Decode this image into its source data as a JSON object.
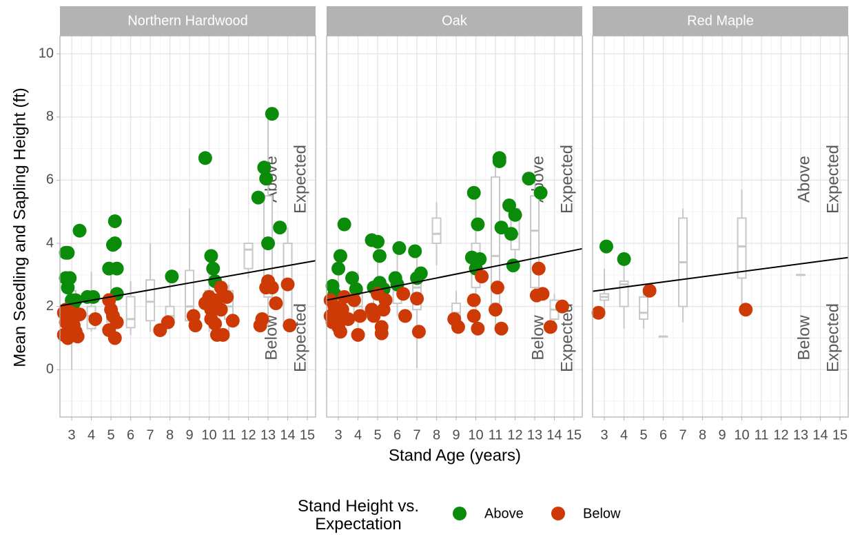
{
  "x_label": "Stand Age (years)",
  "y_label": "Mean Seedling and Sapling Height (ft)",
  "legend_title": "Stand Height vs. Expectation",
  "chart_data": [
    {
      "type": "scatter",
      "title": "Northern Hardwood",
      "xlim": [
        2.4,
        15.42
      ],
      "ylim": [
        -1.5,
        10.57
      ],
      "xticks": [
        3,
        4,
        5,
        6,
        7,
        8,
        9,
        10,
        11,
        12,
        13,
        14,
        15
      ],
      "yticks": [
        0,
        2,
        4,
        6,
        8,
        10
      ],
      "grid": true,
      "series": [
        {
          "name": "Above",
          "color": "#0a8c0a",
          "x": [
            2.7,
            2.8,
            2.7,
            2.9,
            2.8,
            3.0,
            3.1,
            3.2,
            3.4,
            3.8,
            4.1,
            4.9,
            5.1,
            5.2,
            5.2,
            5.3,
            5.3,
            8.1,
            9.8,
            10.1,
            10.2,
            10.3,
            12.5,
            12.8,
            12.9,
            13.0,
            13.2,
            13.6
          ],
          "values": [
            3.7,
            3.7,
            2.9,
            2.9,
            2.6,
            2.2,
            2.1,
            2.2,
            4.4,
            2.3,
            2.3,
            3.2,
            3.95,
            4.0,
            4.7,
            3.2,
            2.4,
            2.95,
            6.7,
            3.6,
            3.2,
            2.8,
            5.45,
            6.4,
            6.05,
            4.0,
            8.1,
            4.5
          ]
        },
        {
          "name": "Below",
          "color": "#cd3a06",
          "x": [
            2.6,
            2.7,
            2.6,
            2.8,
            2.9,
            2.7,
            3.0,
            3.1,
            3.2,
            3.2,
            3.3,
            3.4,
            3.0,
            4.2,
            4.9,
            5.0,
            4.9,
            5.1,
            5.2,
            5.3,
            7.5,
            7.9,
            9.2,
            9.3,
            9.8,
            10.0,
            10.1,
            10.1,
            10.2,
            10.3,
            10.4,
            10.4,
            10.6,
            10.7,
            10.6,
            10.9,
            11.2,
            12.6,
            12.7,
            12.9,
            13.0,
            13.2,
            13.4,
            14.0,
            14.1
          ],
          "values": [
            1.8,
            1.5,
            1.1,
            1.0,
            1.3,
            1.9,
            1.6,
            1.4,
            1.2,
            1.7,
            1.05,
            1.75,
            1.8,
            1.6,
            2.2,
            1.9,
            1.25,
            1.7,
            1.0,
            1.5,
            1.25,
            1.5,
            1.7,
            1.4,
            2.1,
            2.3,
            1.6,
            1.9,
            2.1,
            1.45,
            2.2,
            1.1,
            2.6,
            1.1,
            1.9,
            2.3,
            1.55,
            1.4,
            1.6,
            2.6,
            2.8,
            2.6,
            2.1,
            2.7,
            1.4
          ]
        }
      ],
      "boxplots": {
        "x": [
          3,
          4,
          5,
          6,
          7,
          8,
          9,
          10,
          11,
          12,
          13,
          14
        ],
        "stats": [
          [
            0,
            1.4,
            1.9,
            2.5,
            3.0
          ],
          [
            1.2,
            1.3,
            1.7,
            2.0,
            3.1
          ],
          [
            1.0,
            1.5,
            1.9,
            2.4,
            3.3
          ],
          [
            1.1,
            1.33,
            1.6,
            2.31,
            2.8
          ],
          [
            1.2,
            1.55,
            2.15,
            2.84,
            4.0
          ],
          [
            1.5,
            1.55,
            1.7,
            2.0,
            2.9
          ],
          [
            1.4,
            1.55,
            2.0,
            3.14,
            5.1
          ],
          [
            1.2,
            2.0,
            2.2,
            2.5,
            3.6
          ],
          [
            1.1,
            1.6,
            2.0,
            2.5,
            2.7
          ],
          [
            2.9,
            3.2,
            3.8,
            4.0,
            4.0
          ],
          [
            1.4,
            2.3,
            2.7,
            5.5,
            8.1
          ],
          [
            1.3,
            1.5,
            2.7,
            4.0,
            4.5
          ]
        ]
      },
      "trend": {
        "color": "#000000",
        "x": [
          2.4,
          15.42
        ],
        "values": [
          2.02,
          3.45
        ]
      },
      "annotations": [
        [
          "Above",
          "Expected"
        ],
        [
          "Below",
          "Expected"
        ]
      ]
    },
    {
      "type": "scatter",
      "title": "Oak",
      "xlim": [
        2.4,
        15.42
      ],
      "ylim": [
        -1.5,
        10.57
      ],
      "xticks": [
        3,
        4,
        5,
        6,
        7,
        8,
        9,
        10,
        11,
        12,
        13,
        14,
        15
      ],
      "yticks": [
        0,
        2,
        4,
        6,
        8,
        10
      ],
      "grid": true,
      "series": [
        {
          "name": "Above",
          "color": "#0a8c0a",
          "x": [
            2.7,
            2.8,
            3.0,
            3.1,
            3.3,
            3.7,
            3.9,
            4.7,
            5.0,
            5.1,
            5.1,
            5.3,
            4.8,
            5.9,
            6.0,
            6.1,
            6.9,
            7.0,
            7.2,
            9.8,
            9.9,
            10.1,
            10.0,
            10.2,
            11.2,
            11.2,
            11.3,
            11.7,
            11.8,
            11.9,
            12.0,
            12.7,
            13.3
          ],
          "values": [
            2.65,
            2.4,
            3.2,
            3.6,
            4.6,
            2.9,
            2.55,
            4.1,
            4.05,
            3.6,
            2.75,
            2.55,
            2.6,
            2.9,
            2.7,
            3.85,
            3.75,
            2.9,
            3.05,
            3.55,
            5.6,
            4.6,
            3.2,
            3.5,
            6.7,
            6.6,
            4.5,
            5.2,
            4.3,
            3.3,
            4.9,
            6.05,
            5.6
          ]
        },
        {
          "name": "Below",
          "color": "#cd3a06",
          "x": [
            2.6,
            2.6,
            2.7,
            2.8,
            2.9,
            3.0,
            3.1,
            3.2,
            3.3,
            3.5,
            3.8,
            4.0,
            4.1,
            4.7,
            4.8,
            5.0,
            5.2,
            5.2,
            5.3,
            5.4,
            6.3,
            6.4,
            7.0,
            7.1,
            8.9,
            9.1,
            9.9,
            9.9,
            10.1,
            10.3,
            11.0,
            11.1,
            11.3,
            13.1,
            13.2,
            13.4,
            13.8,
            14.4
          ],
          "values": [
            2.2,
            1.7,
            1.5,
            2.0,
            1.7,
            1.35,
            1.2,
            1.9,
            2.3,
            1.6,
            2.2,
            1.1,
            1.7,
            1.9,
            1.7,
            2.4,
            1.15,
            1.35,
            1.9,
            2.2,
            2.4,
            1.7,
            2.25,
            1.2,
            1.6,
            1.35,
            2.2,
            1.7,
            1.3,
            2.95,
            1.9,
            2.6,
            1.3,
            2.35,
            3.2,
            2.4,
            1.35,
            2.0
          ]
        }
      ],
      "boxplots": {
        "x": [
          3,
          4,
          5,
          6,
          7,
          8,
          9,
          10,
          11,
          12,
          13,
          14
        ],
        "stats": [
          [
            1.2,
            1.8,
            2.1,
            2.4,
            3.2
          ],
          [
            1.1,
            1.6,
            2.0,
            2.6,
            3.1
          ],
          [
            1.1,
            1.8,
            2.3,
            2.8,
            4.1
          ],
          [
            1.7,
            2.1,
            2.5,
            2.9,
            3.8
          ],
          [
            0.05,
            1.9,
            2.6,
            3.0,
            3.8
          ],
          [
            3.3,
            4.0,
            4.3,
            4.8,
            5.3
          ],
          [
            1.3,
            1.5,
            1.8,
            2.1,
            2.5
          ],
          [
            1.3,
            2.6,
            3.3,
            4.0,
            5.6
          ],
          [
            1.3,
            2.1,
            3.6,
            6.1,
            6.8
          ],
          [
            3.3,
            3.8,
            4.3,
            5.1,
            5.2
          ],
          [
            2.3,
            2.6,
            4.4,
            5.5,
            6.0
          ],
          [
            1.3,
            1.6,
            1.9,
            2.2,
            2.4
          ]
        ]
      },
      "trend": {
        "color": "#000000",
        "x": [
          2.4,
          15.42
        ],
        "values": [
          2.2,
          3.83
        ]
      },
      "annotations": [
        [
          "Above",
          "Expected"
        ],
        [
          "Below",
          "Expected"
        ]
      ]
    },
    {
      "type": "scatter",
      "title": "Red Maple",
      "xlim": [
        2.4,
        15.42
      ],
      "ylim": [
        -1.5,
        10.57
      ],
      "xticks": [
        3,
        4,
        5,
        6,
        7,
        8,
        9,
        10,
        11,
        12,
        13,
        14,
        15
      ],
      "yticks": [
        0,
        2,
        4,
        6,
        8,
        10
      ],
      "grid": true,
      "series": [
        {
          "name": "Above",
          "color": "#0a8c0a",
          "x": [
            3.1,
            4.0
          ],
          "values": [
            3.9,
            3.5
          ]
        },
        {
          "name": "Below",
          "color": "#cd3a06",
          "x": [
            2.7,
            5.3,
            10.2
          ],
          "values": [
            1.8,
            2.5,
            1.9
          ]
        }
      ],
      "boxplots": {
        "x": [
          3,
          4,
          5,
          6,
          7,
          10,
          13
        ],
        "stats": [
          [
            1.8,
            2.2,
            2.3,
            2.4,
            3.2
          ],
          [
            1.3,
            2.0,
            2.7,
            2.8,
            3.5
          ],
          [
            1.3,
            1.6,
            1.8,
            2.3,
            2.5
          ],
          [
            1.05,
            1.05,
            1.05,
            1.05,
            1.05
          ],
          [
            1.5,
            2.0,
            3.4,
            4.8,
            5.1
          ],
          [
            1.9,
            2.9,
            3.9,
            4.8,
            5.7
          ],
          [
            3.0,
            3.0,
            3.0,
            3.0,
            3.0
          ]
        ]
      },
      "trend": {
        "color": "#000000",
        "x": [
          2.4,
          15.42
        ],
        "values": [
          2.48,
          3.55
        ]
      },
      "annotations": [
        [
          "Above",
          "Expected"
        ],
        [
          "Below",
          "Expected"
        ]
      ]
    }
  ]
}
